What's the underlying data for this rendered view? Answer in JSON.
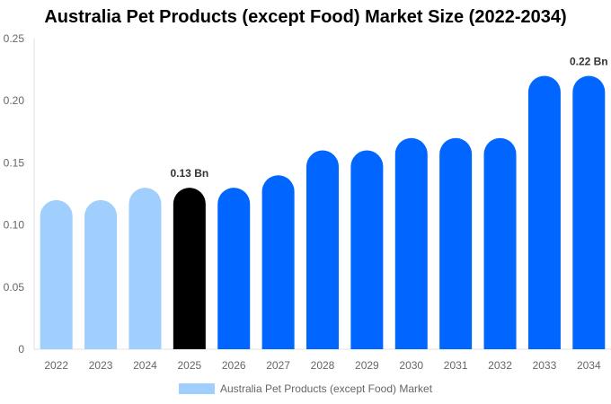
{
  "chart_data": {
    "type": "bar",
    "title": "Australia Pet Products (except Food) Market Size (2022-2034)",
    "categories": [
      "2022",
      "2023",
      "2024",
      "2025",
      "2026",
      "2027",
      "2028",
      "2029",
      "2030",
      "2031",
      "2032",
      "2033",
      "2034"
    ],
    "series": [
      {
        "name": "Australia Pet Products (except Food) Market",
        "values": [
          0.12,
          0.12,
          0.13,
          0.13,
          0.13,
          0.14,
          0.16,
          0.16,
          0.17,
          0.17,
          0.17,
          0.22,
          0.22
        ]
      }
    ],
    "ylim": [
      0,
      0.25
    ],
    "yticks": [
      "0",
      "0.05",
      "0.10",
      "0.15",
      "0.20",
      "0.25"
    ],
    "data_labels": [
      {
        "index": 3,
        "text": "0.13 Bn"
      },
      {
        "index": 12,
        "text": "0.22 Bn"
      }
    ],
    "colors": {
      "historical": "#a0cefd",
      "current": "#000000",
      "forecast": "#0066ff"
    },
    "bar_color_groups": [
      "historical",
      "historical",
      "historical",
      "current",
      "forecast",
      "forecast",
      "forecast",
      "forecast",
      "forecast",
      "forecast",
      "forecast",
      "forecast",
      "forecast"
    ],
    "grid": false,
    "legend_placement": "bottom"
  }
}
